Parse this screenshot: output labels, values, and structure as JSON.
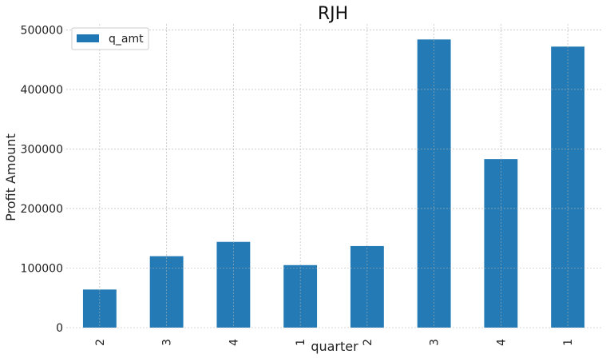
{
  "chart_data": {
    "type": "bar",
    "title": "RJH",
    "xlabel": "quarter",
    "ylabel": "Profit Amount",
    "categories": [
      "2",
      "3",
      "4",
      "1",
      "2",
      "3",
      "4",
      "1"
    ],
    "series": [
      {
        "name": "q_amt",
        "values": [
          64000,
          120000,
          144000,
          105000,
          137000,
          484000,
          283000,
          472000
        ]
      }
    ],
    "yticks": [
      "0",
      "100000",
      "200000",
      "300000",
      "400000",
      "500000"
    ],
    "ylim": [
      0,
      510000
    ],
    "grid": true,
    "legend_position": "top-left",
    "bar_color": "#1f77b4"
  }
}
